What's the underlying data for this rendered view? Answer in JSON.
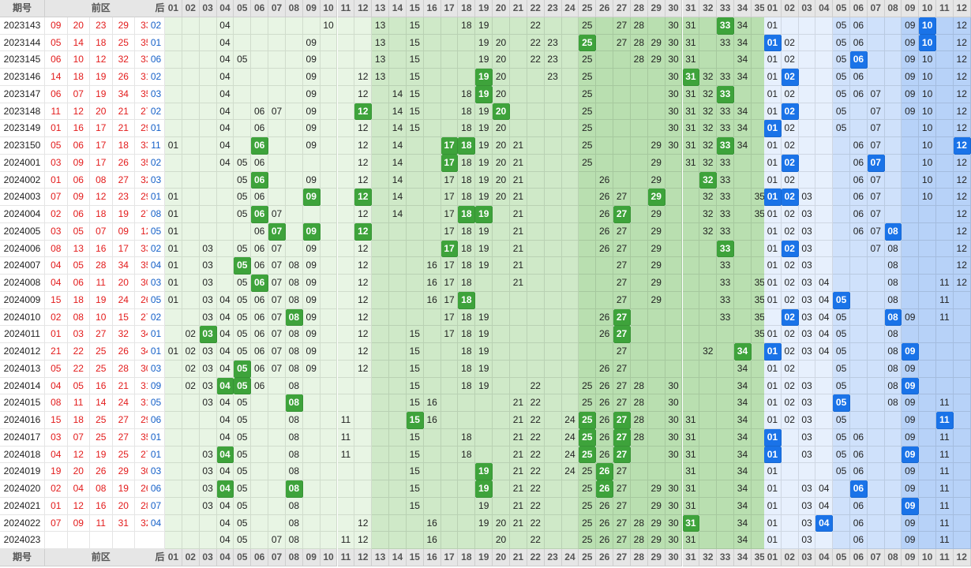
{
  "headers": {
    "period": "期号",
    "front": "前区",
    "back": "后区"
  },
  "front_numbers": [
    "01",
    "02",
    "03",
    "04",
    "05",
    "06",
    "07",
    "08",
    "09",
    "10",
    "11",
    "12",
    "13",
    "14",
    "15",
    "16",
    "17",
    "18",
    "19",
    "20",
    "21",
    "22",
    "23",
    "24",
    "25",
    "26",
    "27",
    "28",
    "29",
    "30",
    "31",
    "32",
    "33",
    "34",
    "35"
  ],
  "back_numbers": [
    "01",
    "02",
    "03",
    "04",
    "05",
    "06",
    "07",
    "08",
    "09",
    "10",
    "11",
    "12"
  ],
  "colors": {
    "front_zone_1": "#e8f5e4",
    "front_zone_2": "#cfe9c8",
    "front_zone_3": "#b9dfb0",
    "back_zone_1": "#e7f0fd",
    "back_zone_2": "#cfe1fb",
    "back_zone_3": "#b7d2f8",
    "front_highlight": "#3ea33b",
    "back_highlight": "#1a73e8",
    "front_draw_text": "#e31b1b",
    "back_draw_text": "#1560c8"
  },
  "rows": [
    {
      "period": "2023143",
      "front": [
        "09",
        "20",
        "23",
        "29",
        "33"
      ],
      "back": [
        "02",
        "10"
      ],
      "fz": [
        "04",
        "10",
        "13",
        "15",
        "18",
        "19",
        "22",
        "25",
        "27",
        "28",
        "30",
        "31",
        "33",
        "34"
      ],
      "fh": [
        "33"
      ],
      "bz": [
        "01",
        "05",
        "06",
        "09",
        "10",
        "12"
      ],
      "bh": [
        "10"
      ]
    },
    {
      "period": "2023144",
      "front": [
        "05",
        "14",
        "18",
        "25",
        "35"
      ],
      "back": [
        "01",
        "10"
      ],
      "fz": [
        "04",
        "09",
        "13",
        "15",
        "19",
        "20",
        "22",
        "23",
        "25",
        "27",
        "28",
        "29",
        "30",
        "31",
        "33",
        "34"
      ],
      "fh": [
        "25"
      ],
      "bz": [
        "01",
        "02",
        "05",
        "06",
        "09",
        "10",
        "12"
      ],
      "bh": [
        "01",
        "10"
      ]
    },
    {
      "period": "2023145",
      "front": [
        "06",
        "10",
        "12",
        "32",
        "33"
      ],
      "back": [
        "06",
        "07"
      ],
      "fz": [
        "04",
        "05",
        "09",
        "13",
        "15",
        "19",
        "20",
        "22",
        "23",
        "25",
        "28",
        "29",
        "30",
        "31",
        "34"
      ],
      "fh": [],
      "bz": [
        "01",
        "02",
        "05",
        "06",
        "09",
        "10",
        "12"
      ],
      "bh": [
        "06"
      ]
    },
    {
      "period": "2023146",
      "front": [
        "14",
        "18",
        "19",
        "26",
        "31"
      ],
      "back": [
        "02",
        "07"
      ],
      "fz": [
        "04",
        "09",
        "12",
        "13",
        "15",
        "19",
        "20",
        "23",
        "25",
        "30",
        "31",
        "32",
        "33",
        "34"
      ],
      "fh": [
        "19",
        "31"
      ],
      "bz": [
        "01",
        "02",
        "05",
        "06",
        "09",
        "10",
        "12"
      ],
      "bh": [
        "02"
      ]
    },
    {
      "period": "2023147",
      "front": [
        "06",
        "07",
        "19",
        "34",
        "35"
      ],
      "back": [
        "03",
        "08"
      ],
      "fz": [
        "04",
        "09",
        "12",
        "14",
        "15",
        "18",
        "19",
        "20",
        "25",
        "30",
        "31",
        "32",
        "33"
      ],
      "fh": [
        "19",
        "33"
      ],
      "bz": [
        "01",
        "02",
        "05",
        "06",
        "07",
        "09",
        "10",
        "12"
      ],
      "bh": []
    },
    {
      "period": "2023148",
      "front": [
        "11",
        "12",
        "20",
        "21",
        "27"
      ],
      "back": [
        "02",
        "12"
      ],
      "fz": [
        "04",
        "06",
        "07",
        "09",
        "12",
        "14",
        "15",
        "18",
        "19",
        "20",
        "25",
        "30",
        "31",
        "32",
        "33",
        "34"
      ],
      "fh": [
        "12",
        "20"
      ],
      "bz": [
        "01",
        "02",
        "05",
        "07",
        "09",
        "10",
        "12"
      ],
      "bh": [
        "02"
      ]
    },
    {
      "period": "2023149",
      "front": [
        "01",
        "16",
        "17",
        "21",
        "29"
      ],
      "back": [
        "01",
        "06"
      ],
      "fz": [
        "04",
        "06",
        "09",
        "12",
        "14",
        "15",
        "18",
        "19",
        "20",
        "25",
        "30",
        "31",
        "32",
        "33",
        "34"
      ],
      "fh": [],
      "bz": [
        "01",
        "02",
        "05",
        "07",
        "10",
        "12"
      ],
      "bh": [
        "01"
      ]
    },
    {
      "period": "2023150",
      "front": [
        "05",
        "06",
        "17",
        "18",
        "33"
      ],
      "back": [
        "11",
        "12"
      ],
      "fz": [
        "01",
        "04",
        "06",
        "09",
        "12",
        "14",
        "17",
        "18",
        "19",
        "20",
        "21",
        "25",
        "29",
        "30",
        "31",
        "32",
        "33",
        "34"
      ],
      "fh": [
        "06",
        "17",
        "18",
        "33"
      ],
      "bz": [
        "01",
        "02",
        "06",
        "07",
        "10",
        "12"
      ],
      "bh": [
        "12"
      ]
    },
    {
      "period": "2024001",
      "front": [
        "03",
        "09",
        "17",
        "26",
        "35"
      ],
      "back": [
        "02",
        "07"
      ],
      "fz": [
        "04",
        "05",
        "06",
        "12",
        "14",
        "17",
        "18",
        "19",
        "20",
        "21",
        "25",
        "29",
        "31",
        "32",
        "33"
      ],
      "fh": [
        "17"
      ],
      "bz": [
        "01",
        "02",
        "06",
        "07",
        "10",
        "12"
      ],
      "bh": [
        "02",
        "07"
      ]
    },
    {
      "period": "2024002",
      "front": [
        "01",
        "06",
        "08",
        "27",
        "32"
      ],
      "back": [
        "03",
        "04"
      ],
      "fz": [
        "05",
        "06",
        "09",
        "12",
        "14",
        "17",
        "18",
        "19",
        "20",
        "21",
        "26",
        "29",
        "32",
        "33"
      ],
      "fh": [
        "06",
        "32"
      ],
      "bz": [
        "01",
        "02",
        "06",
        "07",
        "10",
        "12"
      ],
      "bh": []
    },
    {
      "period": "2024003",
      "front": [
        "07",
        "09",
        "12",
        "23",
        "29"
      ],
      "back": [
        "01",
        "02"
      ],
      "fz": [
        "01",
        "05",
        "06",
        "09",
        "12",
        "14",
        "17",
        "18",
        "19",
        "20",
        "21",
        "26",
        "27",
        "29",
        "32",
        "33",
        "35"
      ],
      "fh": [
        "09",
        "12",
        "29"
      ],
      "bz": [
        "01",
        "02",
        "03",
        "06",
        "07",
        "10",
        "12"
      ],
      "bh": [
        "01",
        "02"
      ]
    },
    {
      "period": "2024004",
      "front": [
        "02",
        "06",
        "18",
        "19",
        "27"
      ],
      "back": [
        "08",
        "09"
      ],
      "fz": [
        "01",
        "05",
        "06",
        "07",
        "12",
        "14",
        "17",
        "18",
        "19",
        "21",
        "26",
        "27",
        "29",
        "32",
        "33",
        "35"
      ],
      "fh": [
        "06",
        "18",
        "19",
        "27"
      ],
      "bz": [
        "01",
        "02",
        "03",
        "06",
        "07",
        "12"
      ],
      "bh": []
    },
    {
      "period": "2024005",
      "front": [
        "03",
        "05",
        "07",
        "09",
        "12"
      ],
      "back": [
        "05",
        "08"
      ],
      "fz": [
        "01",
        "06",
        "07",
        "09",
        "12",
        "17",
        "18",
        "19",
        "21",
        "26",
        "27",
        "29",
        "32",
        "33"
      ],
      "fh": [
        "07",
        "09",
        "12"
      ],
      "bz": [
        "01",
        "02",
        "03",
        "06",
        "07",
        "08",
        "12"
      ],
      "bh": [
        "08"
      ]
    },
    {
      "period": "2024006",
      "front": [
        "08",
        "13",
        "16",
        "17",
        "33"
      ],
      "back": [
        "02",
        "10"
      ],
      "fz": [
        "01",
        "03",
        "05",
        "06",
        "07",
        "09",
        "12",
        "17",
        "18",
        "19",
        "21",
        "26",
        "27",
        "29",
        "33"
      ],
      "fh": [
        "17",
        "33"
      ],
      "bz": [
        "01",
        "02",
        "03",
        "07",
        "08",
        "12"
      ],
      "bh": [
        "02"
      ]
    },
    {
      "period": "2024007",
      "front": [
        "04",
        "05",
        "28",
        "34",
        "35"
      ],
      "back": [
        "04",
        "11"
      ],
      "fz": [
        "01",
        "03",
        "05",
        "06",
        "07",
        "08",
        "09",
        "12",
        "16",
        "17",
        "18",
        "19",
        "21",
        "27",
        "29",
        "33"
      ],
      "fh": [
        "05"
      ],
      "bz": [
        "01",
        "02",
        "03",
        "08",
        "12"
      ],
      "bh": []
    },
    {
      "period": "2024008",
      "front": [
        "04",
        "06",
        "11",
        "20",
        "30"
      ],
      "back": [
        "03",
        "05"
      ],
      "fz": [
        "01",
        "03",
        "05",
        "06",
        "07",
        "08",
        "09",
        "12",
        "16",
        "17",
        "18",
        "21",
        "27",
        "29",
        "33",
        "35"
      ],
      "fh": [
        "06"
      ],
      "bz": [
        "01",
        "02",
        "03",
        "04",
        "08",
        "11",
        "12"
      ],
      "bh": []
    },
    {
      "period": "2024009",
      "front": [
        "15",
        "18",
        "19",
        "24",
        "26"
      ],
      "back": [
        "05",
        "09"
      ],
      "fz": [
        "01",
        "03",
        "04",
        "05",
        "06",
        "07",
        "08",
        "09",
        "12",
        "16",
        "17",
        "18",
        "27",
        "29",
        "33",
        "35"
      ],
      "fh": [
        "18"
      ],
      "bz": [
        "01",
        "02",
        "03",
        "04",
        "05",
        "08",
        "11"
      ],
      "bh": [
        "05"
      ]
    },
    {
      "period": "2024010",
      "front": [
        "02",
        "08",
        "10",
        "15",
        "27"
      ],
      "back": [
        "02",
        "08"
      ],
      "fz": [
        "03",
        "04",
        "05",
        "06",
        "07",
        "08",
        "09",
        "12",
        "17",
        "18",
        "19",
        "26",
        "27",
        "33",
        "35"
      ],
      "fh": [
        "08",
        "27"
      ],
      "bz": [
        "02",
        "03",
        "04",
        "05",
        "08",
        "09",
        "11"
      ],
      "bh": [
        "02",
        "08"
      ]
    },
    {
      "period": "2024011",
      "front": [
        "01",
        "03",
        "27",
        "32",
        "34"
      ],
      "back": [
        "01",
        "07"
      ],
      "fz": [
        "02",
        "03",
        "04",
        "05",
        "06",
        "07",
        "08",
        "09",
        "12",
        "15",
        "17",
        "18",
        "19",
        "26",
        "27",
        "35"
      ],
      "fh": [
        "03",
        "27"
      ],
      "bz": [
        "01",
        "02",
        "03",
        "04",
        "05",
        "08"
      ],
      "bh": []
    },
    {
      "period": "2024012",
      "front": [
        "21",
        "22",
        "25",
        "26",
        "34"
      ],
      "back": [
        "01",
        "09"
      ],
      "fz": [
        "01",
        "02",
        "03",
        "04",
        "05",
        "06",
        "07",
        "08",
        "09",
        "12",
        "15",
        "18",
        "19",
        "27",
        "32",
        "34"
      ],
      "fh": [
        "34"
      ],
      "bz": [
        "01",
        "02",
        "03",
        "04",
        "05",
        "08",
        "09"
      ],
      "bh": [
        "01",
        "09"
      ]
    },
    {
      "period": "2024013",
      "front": [
        "05",
        "22",
        "25",
        "28",
        "30"
      ],
      "back": [
        "03",
        "12"
      ],
      "fz": [
        "02",
        "03",
        "04",
        "05",
        "06",
        "07",
        "08",
        "09",
        "12",
        "15",
        "18",
        "19",
        "26",
        "27",
        "34"
      ],
      "fh": [
        "05"
      ],
      "bz": [
        "01",
        "02",
        "05",
        "08",
        "09"
      ],
      "bh": []
    },
    {
      "period": "2024014",
      "front": [
        "04",
        "05",
        "16",
        "21",
        "31"
      ],
      "back": [
        "09",
        "11"
      ],
      "fz": [
        "02",
        "03",
        "04",
        "05",
        "06",
        "08",
        "15",
        "18",
        "19",
        "22",
        "25",
        "26",
        "27",
        "28",
        "30",
        "34"
      ],
      "fh": [
        "04",
        "05"
      ],
      "bz": [
        "01",
        "02",
        "03",
        "05",
        "08",
        "09"
      ],
      "bh": [
        "09"
      ]
    },
    {
      "period": "2024015",
      "front": [
        "08",
        "11",
        "14",
        "24",
        "31"
      ],
      "back": [
        "05",
        "06"
      ],
      "fz": [
        "03",
        "04",
        "05",
        "08",
        "15",
        "16",
        "21",
        "22",
        "25",
        "26",
        "27",
        "28",
        "30",
        "34"
      ],
      "fh": [
        "08"
      ],
      "bz": [
        "01",
        "02",
        "03",
        "05",
        "08",
        "09",
        "11"
      ],
      "bh": [
        "05"
      ]
    },
    {
      "period": "2024016",
      "front": [
        "15",
        "18",
        "25",
        "27",
        "29"
      ],
      "back": [
        "06",
        "11"
      ],
      "fz": [
        "04",
        "05",
        "08",
        "11",
        "15",
        "16",
        "21",
        "22",
        "24",
        "25",
        "26",
        "27",
        "28",
        "30",
        "31",
        "34"
      ],
      "fh": [
        "15",
        "25",
        "27"
      ],
      "bz": [
        "01",
        "02",
        "03",
        "05",
        "09",
        "11"
      ],
      "bh": [
        "11"
      ]
    },
    {
      "period": "2024017",
      "front": [
        "03",
        "07",
        "25",
        "27",
        "35"
      ],
      "back": [
        "01",
        "04"
      ],
      "fz": [
        "04",
        "05",
        "08",
        "11",
        "15",
        "18",
        "21",
        "22",
        "24",
        "25",
        "26",
        "27",
        "28",
        "30",
        "31",
        "34"
      ],
      "fh": [
        "25",
        "27"
      ],
      "bz": [
        "01",
        "03",
        "05",
        "06",
        "09",
        "11"
      ],
      "bh": [
        "01"
      ]
    },
    {
      "period": "2024018",
      "front": [
        "04",
        "12",
        "19",
        "25",
        "27"
      ],
      "back": [
        "01",
        "09"
      ],
      "fz": [
        "03",
        "04",
        "05",
        "08",
        "11",
        "15",
        "18",
        "21",
        "22",
        "24",
        "25",
        "26",
        "27",
        "30",
        "31",
        "34"
      ],
      "fh": [
        "04",
        "25",
        "27"
      ],
      "bz": [
        "01",
        "03",
        "05",
        "06",
        "09",
        "11"
      ],
      "bh": [
        "01",
        "09"
      ]
    },
    {
      "period": "2024019",
      "front": [
        "19",
        "20",
        "26",
        "29",
        "30"
      ],
      "back": [
        "03",
        "04"
      ],
      "fz": [
        "03",
        "04",
        "05",
        "08",
        "15",
        "19",
        "21",
        "22",
        "24",
        "25",
        "26",
        "27",
        "31",
        "34"
      ],
      "fh": [
        "19",
        "26"
      ],
      "bz": [
        "01",
        "05",
        "06",
        "09",
        "11"
      ],
      "bh": []
    },
    {
      "period": "2024020",
      "front": [
        "02",
        "04",
        "08",
        "19",
        "26"
      ],
      "back": [
        "06",
        "12"
      ],
      "fz": [
        "03",
        "04",
        "05",
        "08",
        "15",
        "19",
        "21",
        "22",
        "25",
        "26",
        "27",
        "29",
        "30",
        "31",
        "34"
      ],
      "fh": [
        "04",
        "08",
        "19",
        "26"
      ],
      "bz": [
        "01",
        "03",
        "04",
        "06",
        "09",
        "11"
      ],
      "bh": [
        "06"
      ]
    },
    {
      "period": "2024021",
      "front": [
        "01",
        "12",
        "16",
        "20",
        "28"
      ],
      "back": [
        "07",
        "09"
      ],
      "fz": [
        "03",
        "04",
        "05",
        "08",
        "15",
        "19",
        "21",
        "22",
        "25",
        "26",
        "27",
        "29",
        "30",
        "31",
        "34"
      ],
      "fh": [],
      "bz": [
        "01",
        "03",
        "04",
        "06",
        "09",
        "11"
      ],
      "bh": [
        "09"
      ]
    },
    {
      "period": "2024022",
      "front": [
        "07",
        "09",
        "11",
        "31",
        "32"
      ],
      "back": [
        "04",
        "08"
      ],
      "fz": [
        "04",
        "05",
        "08",
        "12",
        "16",
        "19",
        "20",
        "21",
        "22",
        "25",
        "26",
        "27",
        "28",
        "29",
        "30",
        "31",
        "34"
      ],
      "fh": [
        "31"
      ],
      "bz": [
        "01",
        "03",
        "04",
        "06",
        "09",
        "11"
      ],
      "bh": [
        "04"
      ]
    },
    {
      "period": "2024023",
      "front": [],
      "back": [],
      "fz": [
        "04",
        "05",
        "07",
        "08",
        "11",
        "12",
        "16",
        "20",
        "22",
        "25",
        "26",
        "27",
        "28",
        "29",
        "30",
        "31",
        "34"
      ],
      "fh": [],
      "bz": [
        "01",
        "03",
        "06",
        "09",
        "11"
      ],
      "bh": []
    }
  ]
}
